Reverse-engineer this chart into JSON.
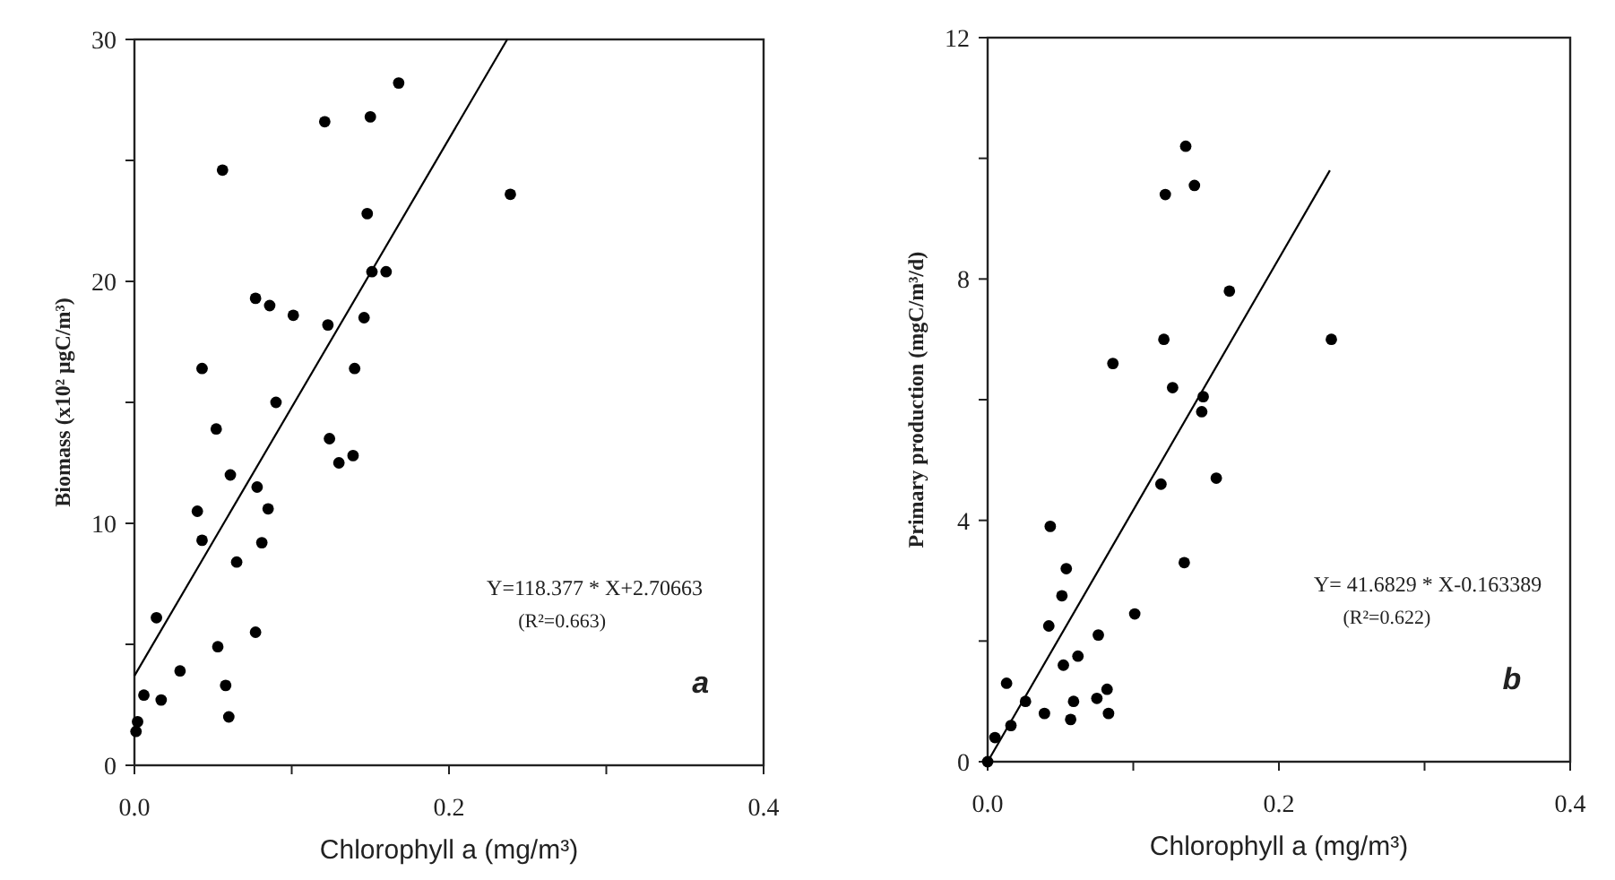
{
  "chart_data": [
    {
      "type": "scatter",
      "xlabel": "Chlorophyll a (mg/m³)",
      "ylabel": "Biomass (x10² μgC/m³)",
      "xlim": [
        0,
        0.4
      ],
      "xticks": [
        {
          "value": 0,
          "label": "0.0"
        },
        {
          "value": 0.1,
          "label": null
        },
        {
          "value": 0.2,
          "label": "0.2"
        },
        {
          "value": 0.3,
          "label": null
        },
        {
          "value": 0.4,
          "label": "0.4"
        }
      ],
      "ylim": [
        0,
        30
      ],
      "yticks": [
        0,
        {
          "value": 5,
          "label": null
        },
        10,
        {
          "value": 15,
          "label": null
        },
        20,
        {
          "value": 25,
          "label": null
        },
        30
      ],
      "annotations": [
        "Y=118.377 * X+2.70663",
        "(R²=0.663)",
        "a"
      ],
      "series": [
        {
          "marker": "circle",
          "color": "#000000",
          "x": [
            0.168,
            0.121,
            0.15,
            0.056,
            0.239,
            0.148,
            0.151,
            0.16,
            0.077,
            0.086,
            0.101,
            0.123,
            0.146,
            0.043,
            0.14,
            0.09,
            0.052,
            0.124,
            0.13,
            0.139,
            0.061,
            0.078,
            0.085,
            0.04,
            0.043,
            0.081,
            0.065,
            0.014,
            0.077,
            0.053,
            0.029,
            0.058,
            0.006,
            0.017,
            0.06,
            0.002,
            0.001
          ],
          "values": [
            28.2,
            26.6,
            26.8,
            24.6,
            23.6,
            22.8,
            20.4,
            20.4,
            19.3,
            19.0,
            18.6,
            18.2,
            18.5,
            16.4,
            16.4,
            15.0,
            13.9,
            13.5,
            12.5,
            12.8,
            12.0,
            11.5,
            10.6,
            10.5,
            9.3,
            9.2,
            8.4,
            6.1,
            5.5,
            4.9,
            3.9,
            3.3,
            2.9,
            2.7,
            2.0,
            1.8,
            1.4
          ]
        },
        {
          "type": "line",
          "color": "#000000",
          "x": [
            0,
            0.237
          ],
          "values": [
            3.7,
            30
          ]
        }
      ]
    },
    {
      "type": "scatter",
      "xlabel": "Chlorophyll a (mg/m³)",
      "ylabel": "Primary production (mgC/m³/d)",
      "xlim": [
        0,
        0.4
      ],
      "xticks": [
        {
          "value": 0,
          "label": "0.0"
        },
        {
          "value": 0.1,
          "label": null
        },
        {
          "value": 0.2,
          "label": "0.2"
        },
        {
          "value": 0.3,
          "label": null
        },
        {
          "value": 0.4,
          "label": "0.4"
        }
      ],
      "ylim": [
        0,
        12
      ],
      "yticks": [
        0,
        {
          "value": 2,
          "label": null
        },
        4,
        {
          "value": 6,
          "label": null
        },
        8,
        {
          "value": 10,
          "label": null
        },
        12
      ],
      "annotations": [
        "Y= 41.6829 * X-0.163389",
        "(R²=0.622)",
        "b"
      ],
      "series": [
        {
          "marker": "circle",
          "color": "#000000",
          "x": [
            0.136,
            0.122,
            0.142,
            0.166,
            0.121,
            0.236,
            0.086,
            0.127,
            0.148,
            0.147,
            0.119,
            0.157,
            0.043,
            0.135,
            0.054,
            0.051,
            0.101,
            0.042,
            0.076,
            0.062,
            0.052,
            0.013,
            0.082,
            0.075,
            0.059,
            0.026,
            0.039,
            0.083,
            0.057,
            0.016,
            0.005,
            0.0
          ],
          "values": [
            10.2,
            9.4,
            9.55,
            7.8,
            7.0,
            7.0,
            6.6,
            6.2,
            6.05,
            5.8,
            4.6,
            4.7,
            3.9,
            3.3,
            3.2,
            2.75,
            2.45,
            2.25,
            2.1,
            1.75,
            1.6,
            1.3,
            1.2,
            1.05,
            1.0,
            1.0,
            0.8,
            0.8,
            0.7,
            0.6,
            0.4,
            0.0
          ]
        },
        {
          "type": "line",
          "color": "#000000",
          "x": [
            0,
            0.235
          ],
          "values": [
            0,
            9.8
          ]
        }
      ]
    }
  ]
}
